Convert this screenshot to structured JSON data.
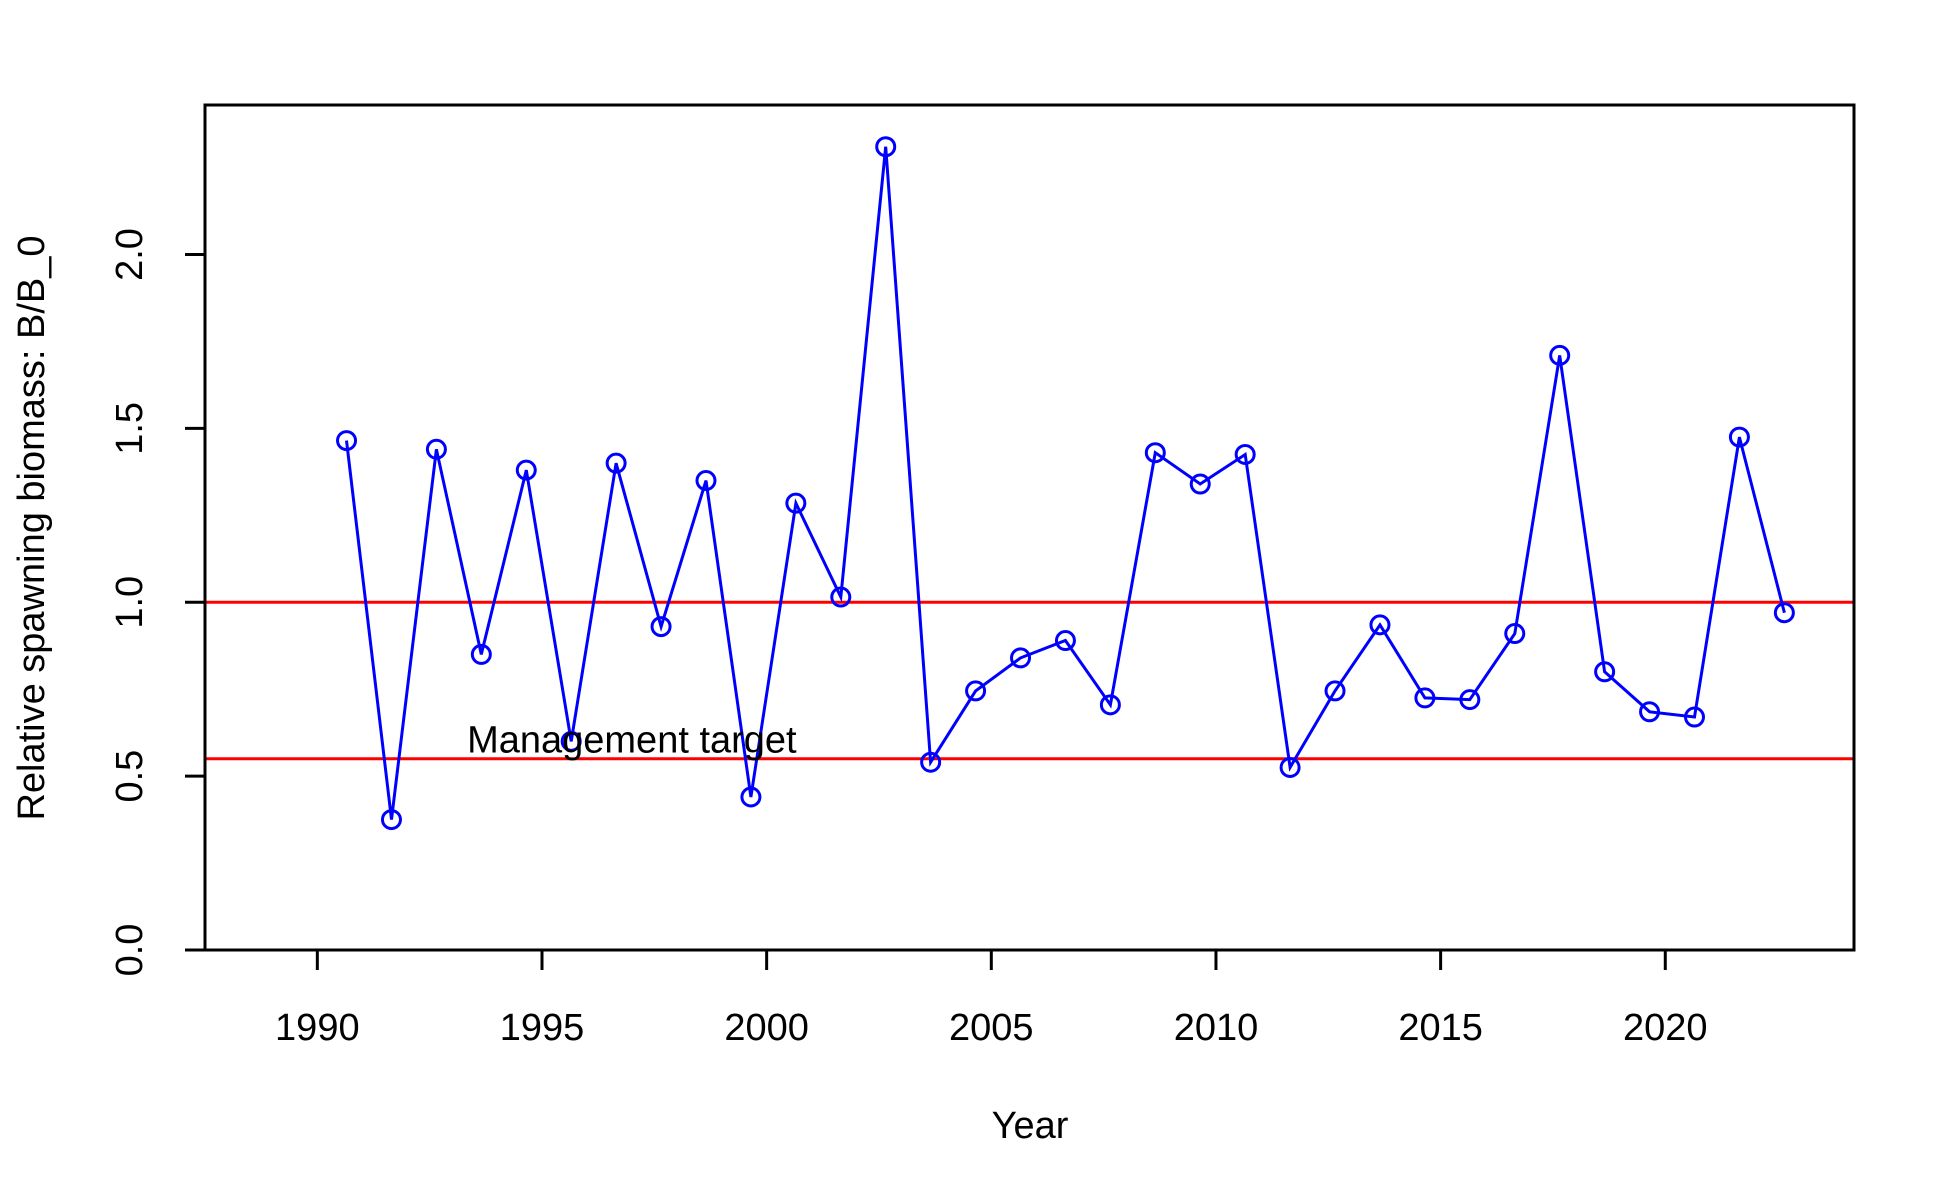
{
  "chart_data": {
    "type": "line",
    "title": "",
    "xlabel": "Year",
    "ylabel": "Relative spawning biomass: B/B_0",
    "xlim": [
      1987.5,
      2024.2
    ],
    "ylim": [
      0,
      2.43
    ],
    "x_ticks": [
      1990,
      1995,
      2000,
      2005,
      2010,
      2015,
      2020
    ],
    "y_ticks": [
      0,
      0.5,
      1,
      1.5,
      2
    ],
    "x_tick_labels": [
      "1990",
      "1995",
      "2000",
      "2005",
      "2010",
      "2015",
      "2020"
    ],
    "y_tick_labels": [
      "0.0",
      "0.5",
      "1.0",
      "1.5",
      "2.0"
    ],
    "grid": false,
    "series": [
      {
        "marker": "open-circle",
        "color": "#0000ff",
        "x": [
          1990.65,
          1991.65,
          1992.65,
          1993.65,
          1994.65,
          1995.65,
          1996.65,
          1997.65,
          1998.65,
          1999.65,
          2000.65,
          2001.65,
          2002.65,
          2003.65,
          2004.65,
          2005.65,
          2006.65,
          2007.65,
          2008.65,
          2009.65,
          2010.65,
          2011.65,
          2012.65,
          2013.65,
          2014.65,
          2015.65,
          2016.65,
          2017.65,
          2018.65,
          2019.65,
          2020.65,
          2021.65,
          2022.65
        ],
        "values": [
          1.465,
          0.375,
          1.44,
          0.85,
          1.38,
          0.6,
          1.4,
          0.93,
          1.35,
          0.44,
          1.285,
          1.015,
          2.31,
          0.54,
          0.745,
          0.84,
          0.89,
          0.705,
          1.43,
          1.34,
          1.425,
          0.525,
          0.745,
          0.935,
          0.725,
          0.72,
          0.91,
          1.71,
          0.8,
          0.685,
          0.67,
          1.475,
          0.97
        ]
      }
    ],
    "reference_lines": [
      {
        "y": 1.0,
        "color": "#ff0000"
      },
      {
        "y": 0.55,
        "color": "#ff0000"
      }
    ],
    "annotations": [
      {
        "text": "Management target",
        "x": 1997.0,
        "y": 0.6
      }
    ]
  }
}
